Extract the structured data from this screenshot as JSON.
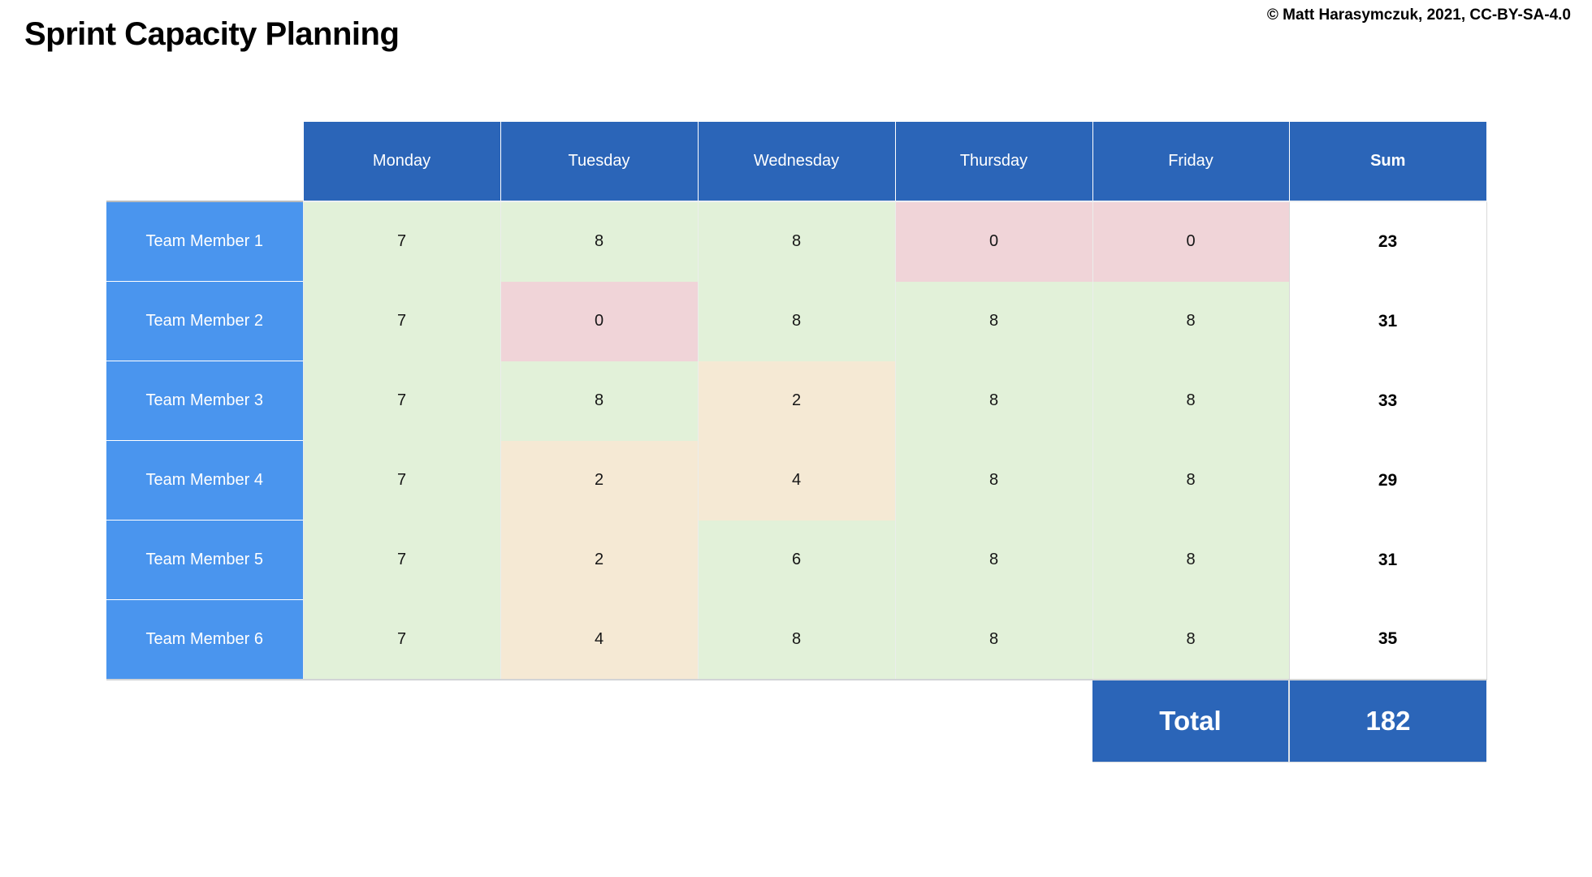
{
  "page": {
    "title": "Sprint Capacity Planning",
    "copyright": "© Matt Harasymczuk, 2021, CC-BY-SA-4.0"
  },
  "table": {
    "columns": [
      "Monday",
      "Tuesday",
      "Wednesday",
      "Thursday",
      "Friday"
    ],
    "sum_label": "Sum",
    "rows": [
      {
        "label": "Team Member 1",
        "values": [
          7,
          8,
          8,
          0,
          0
        ],
        "colors": [
          "green",
          "green",
          "green",
          "red",
          "red"
        ],
        "sum": 23
      },
      {
        "label": "Team Member 2",
        "values": [
          7,
          0,
          8,
          8,
          8
        ],
        "colors": [
          "green",
          "red",
          "green",
          "green",
          "green"
        ],
        "sum": 31
      },
      {
        "label": "Team Member 3",
        "values": [
          7,
          8,
          2,
          8,
          8
        ],
        "colors": [
          "green",
          "green",
          "orange",
          "green",
          "green"
        ],
        "sum": 33
      },
      {
        "label": "Team Member 4",
        "values": [
          7,
          2,
          4,
          8,
          8
        ],
        "colors": [
          "green",
          "orange",
          "orange",
          "green",
          "green"
        ],
        "sum": 29
      },
      {
        "label": "Team Member 5",
        "values": [
          7,
          2,
          6,
          8,
          8
        ],
        "colors": [
          "green",
          "orange",
          "green",
          "green",
          "green"
        ],
        "sum": 31
      },
      {
        "label": "Team Member 6",
        "values": [
          7,
          4,
          8,
          8,
          8
        ],
        "colors": [
          "green",
          "orange",
          "green",
          "green",
          "green"
        ],
        "sum": 35
      }
    ],
    "total_label": "Total",
    "total_value": 182
  },
  "colors": {
    "header_blue": "#2b65b8",
    "row_header_blue": "#4a95ee",
    "cell_green": "#e2f1d9",
    "cell_red": "#f0d4d8",
    "cell_orange": "#f5e9d4",
    "sum_text": "#000000",
    "border_light": "#d9d9d9"
  },
  "chart_data": {
    "type": "table",
    "title": "Sprint Capacity Planning",
    "columns": [
      "Monday",
      "Tuesday",
      "Wednesday",
      "Thursday",
      "Friday",
      "Sum"
    ],
    "row_labels": [
      "Team Member 1",
      "Team Member 2",
      "Team Member 3",
      "Team Member 4",
      "Team Member 5",
      "Team Member 6"
    ],
    "values": [
      [
        7,
        8,
        8,
        0,
        0,
        23
      ],
      [
        7,
        0,
        8,
        8,
        8,
        31
      ],
      [
        7,
        8,
        2,
        8,
        8,
        33
      ],
      [
        7,
        2,
        4,
        8,
        8,
        29
      ],
      [
        7,
        2,
        6,
        8,
        8,
        31
      ],
      [
        7,
        4,
        8,
        8,
        8,
        35
      ]
    ],
    "total": 182
  }
}
